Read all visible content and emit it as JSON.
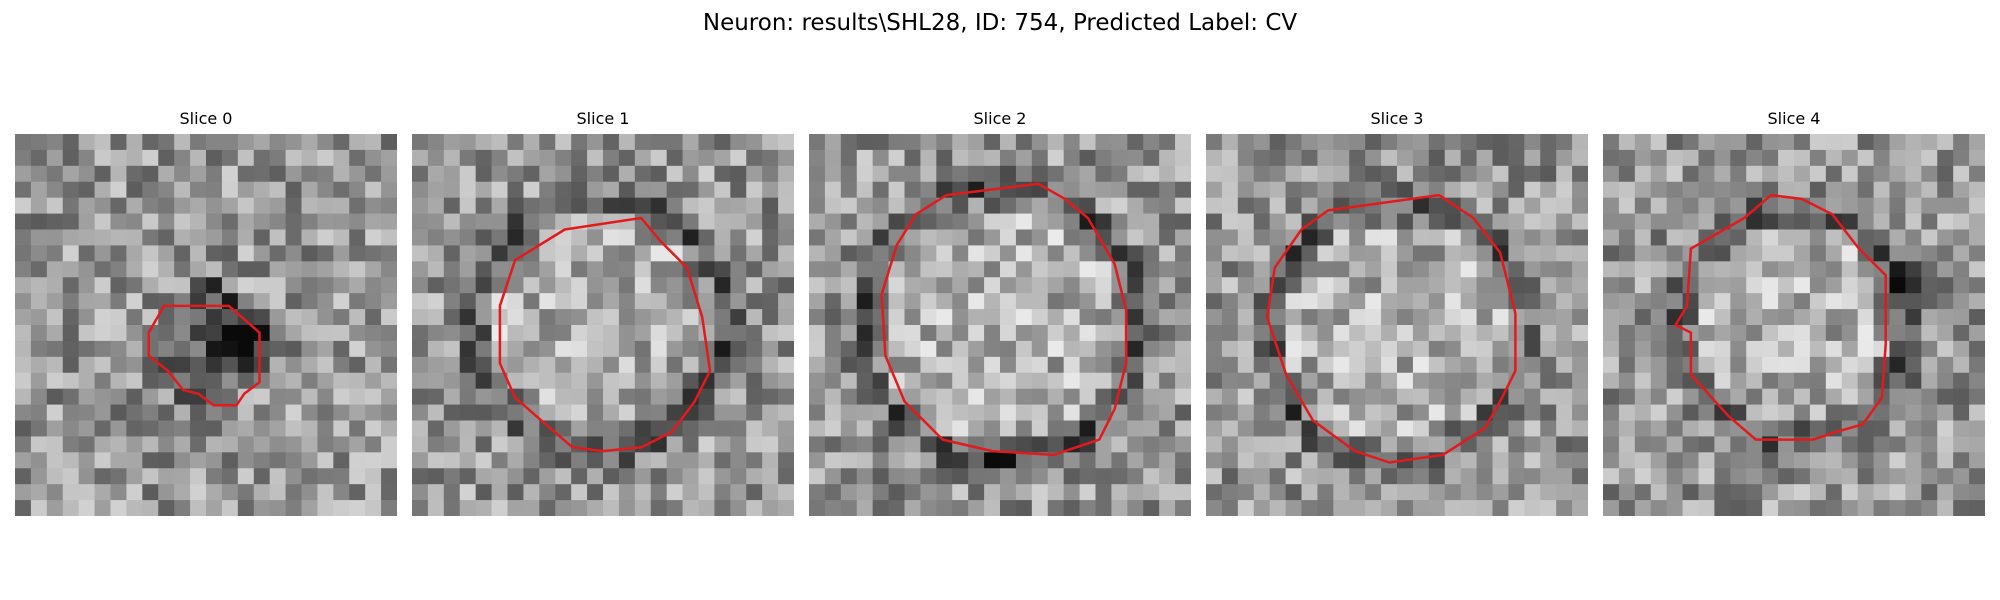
{
  "figure": {
    "title": "Neuron: results\\SHL28, ID: 754, Predicted Label: CV"
  },
  "colors": {
    "contour": "#e31a1c",
    "background": "#ffffff",
    "text": "#000000"
  },
  "panels": [
    {
      "title": "Slice 0"
    },
    {
      "title": "Slice 1"
    },
    {
      "title": "Slice 2"
    },
    {
      "title": "Slice 3"
    },
    {
      "title": "Slice 4"
    }
  ]
}
